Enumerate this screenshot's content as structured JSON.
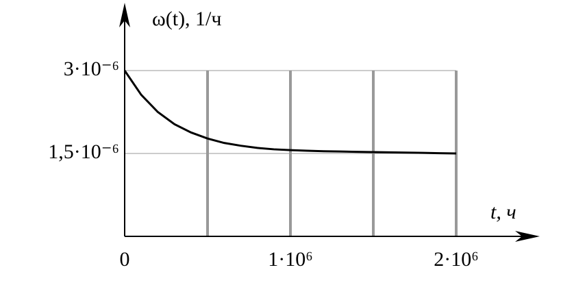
{
  "chart_data": {
    "type": "line",
    "y_label": "ω(t), 1/ч",
    "x_label": "t, ч",
    "x": [
      0,
      100000,
      200000,
      300000,
      400000,
      500000,
      600000,
      700000,
      800000,
      900000,
      1000000,
      1100000,
      1200000,
      1300000,
      1400000,
      1500000,
      1600000,
      1700000,
      1800000,
      1900000,
      2000000
    ],
    "series": [
      {
        "color": "#000000",
        "values": [
          3e-06,
          2.56e-06,
          2.25e-06,
          2.03e-06,
          1.88e-06,
          1.77e-06,
          1.69e-06,
          1.64e-06,
          1.6e-06,
          1.575e-06,
          1.56e-06,
          1.55e-06,
          1.54e-06,
          1.535e-06,
          1.53e-06,
          1.525e-06,
          1.52e-06,
          1.515e-06,
          1.51e-06,
          1.505e-06,
          1.5e-06
        ]
      }
    ],
    "xlim": [
      0,
      2500000
    ],
    "ylim": [
      0,
      4e-06
    ],
    "xticks": [
      0,
      {
        "value": 500000,
        "label": null
      },
      {
        "value": 1000000,
        "label": "1·10⁶"
      },
      {
        "value": 1500000,
        "label": null
      },
      {
        "value": 2000000,
        "label": "2·10⁶"
      }
    ],
    "yticks": [
      {
        "value": 1.5e-06,
        "label": "1,5·10⁻⁶"
      },
      {
        "value": 3e-06,
        "label": "3·10⁻⁶"
      }
    ],
    "grid": true
  }
}
